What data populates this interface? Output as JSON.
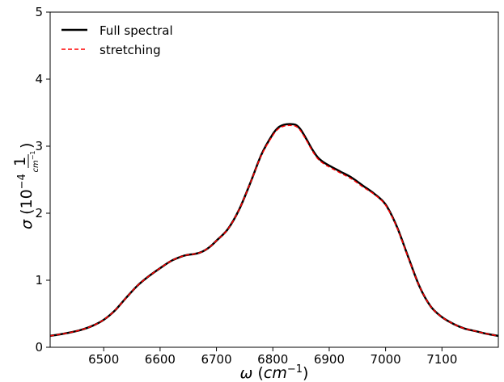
{
  "chart_data": {
    "type": "line",
    "title": "",
    "xlabel": {
      "symbol": "ω",
      "unit_base": "cm",
      "unit_exp": "−1"
    },
    "ylabel": {
      "symbol": "σ",
      "scale_base": "10",
      "scale_exp": "−4",
      "frac_num": "1",
      "frac_den_base": "cm",
      "frac_den_exp": "−1"
    },
    "xlim": [
      6405,
      7200
    ],
    "ylim": [
      0,
      5
    ],
    "xticks": [
      6500,
      6600,
      6700,
      6800,
      6900,
      7000,
      7100
    ],
    "yticks": [
      0,
      1,
      2,
      3,
      4,
      5
    ],
    "grid": false,
    "legend_position": "top-left",
    "series": [
      {
        "name": "Full spectral",
        "color": "#000000",
        "style": "solid",
        "x": [
          6405,
          6420,
          6440,
          6460,
          6480,
          6500,
          6520,
          6540,
          6560,
          6580,
          6600,
          6620,
          6640,
          6650,
          6660,
          6670,
          6680,
          6690,
          6700,
          6720,
          6740,
          6760,
          6780,
          6800,
          6810,
          6820,
          6830,
          6840,
          6845,
          6850,
          6860,
          6870,
          6880,
          6890,
          6900,
          6920,
          6940,
          6960,
          6980,
          7000,
          7020,
          7040,
          7060,
          7080,
          7100,
          7120,
          7140,
          7160,
          7180,
          7200
        ],
        "y": [
          0.17,
          0.19,
          0.22,
          0.26,
          0.32,
          0.41,
          0.55,
          0.74,
          0.92,
          1.06,
          1.18,
          1.29,
          1.36,
          1.38,
          1.39,
          1.41,
          1.45,
          1.51,
          1.59,
          1.76,
          2.05,
          2.45,
          2.88,
          3.18,
          3.28,
          3.32,
          3.33,
          3.32,
          3.29,
          3.24,
          3.1,
          2.95,
          2.83,
          2.76,
          2.71,
          2.62,
          2.53,
          2.41,
          2.29,
          2.13,
          1.8,
          1.35,
          0.91,
          0.61,
          0.45,
          0.35,
          0.28,
          0.24,
          0.2,
          0.17
        ]
      },
      {
        "name": "stretching",
        "color": "#ff0000",
        "style": "dashed",
        "x": [
          6405,
          6420,
          6440,
          6460,
          6480,
          6500,
          6520,
          6540,
          6560,
          6580,
          6600,
          6620,
          6640,
          6650,
          6660,
          6670,
          6680,
          6690,
          6700,
          6720,
          6740,
          6760,
          6780,
          6800,
          6810,
          6820,
          6830,
          6840,
          6845,
          6850,
          6860,
          6870,
          6880,
          6890,
          6900,
          6920,
          6940,
          6960,
          6980,
          7000,
          7020,
          7040,
          7060,
          7080,
          7100,
          7120,
          7140,
          7160,
          7180,
          7200
        ],
        "y": [
          0.17,
          0.19,
          0.22,
          0.26,
          0.32,
          0.41,
          0.55,
          0.74,
          0.92,
          1.06,
          1.18,
          1.29,
          1.36,
          1.38,
          1.39,
          1.41,
          1.45,
          1.51,
          1.59,
          1.76,
          2.05,
          2.45,
          2.87,
          3.16,
          3.26,
          3.3,
          3.31,
          3.3,
          3.27,
          3.22,
          3.08,
          2.93,
          2.81,
          2.74,
          2.69,
          2.6,
          2.51,
          2.39,
          2.28,
          2.12,
          1.79,
          1.34,
          0.91,
          0.61,
          0.45,
          0.35,
          0.28,
          0.24,
          0.2,
          0.17
        ]
      }
    ]
  }
}
